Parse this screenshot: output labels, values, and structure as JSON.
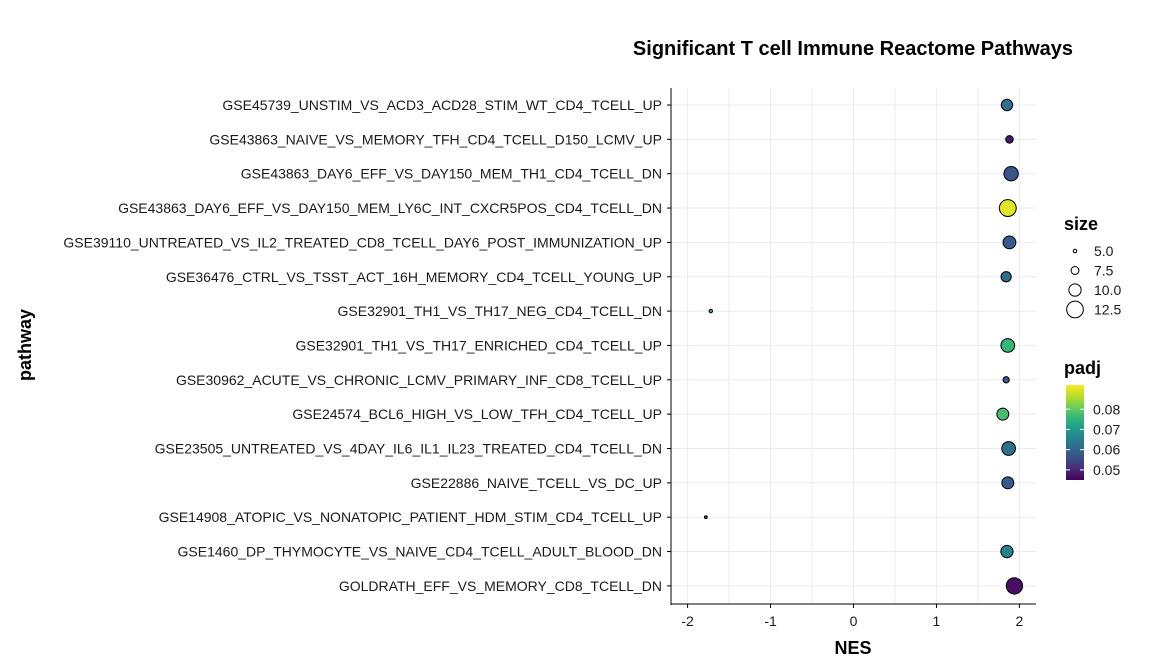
{
  "chart_data": {
    "type": "scatter",
    "title": "Significant T cell Immune Reactome Pathways",
    "xlabel": "NES",
    "ylabel": "pathway",
    "xlim": [
      -2.2,
      2.2
    ],
    "xticks": [
      -2,
      -1,
      0,
      1,
      2
    ],
    "grid": true,
    "legend_position": "right",
    "points": [
      {
        "pathway": "GSE45739_UNSTIM_VS_ACD3_ACD28_STIM_WT_CD4_TCELL_UP",
        "nes": 1.85,
        "size": 9.5,
        "padj": 0.062
      },
      {
        "pathway": "GSE43863_NAIVE_VS_MEMORY_TFH_CD4_TCELL_D150_LCMV_UP",
        "nes": 1.88,
        "size": 7.3,
        "padj": 0.048
      },
      {
        "pathway": "GSE43863_DAY6_EFF_VS_DAY150_MEM_TH1_CD4_TCELL_DN",
        "nes": 1.9,
        "size": 11.2,
        "padj": 0.057
      },
      {
        "pathway": "GSE43863_DAY6_EFF_VS_DAY150_MEM_LY6C_INT_CXCR5POS_CD4_TCELL_DN",
        "nes": 1.86,
        "size": 12.6,
        "padj": 0.09
      },
      {
        "pathway": "GSE39110_UNTREATED_VS_IL2_TREATED_CD8_TCELL_DAY6_POST_IMMUNIZATION_UP",
        "nes": 1.88,
        "size": 10.3,
        "padj": 0.058
      },
      {
        "pathway": "GSE36476_CTRL_VS_TSST_ACT_16H_MEMORY_CD4_TCELL_YOUNG_UP",
        "nes": 1.84,
        "size": 8.8,
        "padj": 0.062
      },
      {
        "pathway": "GSE32901_TH1_VS_TH17_NEG_CD4_TCELL_DN",
        "nes": -1.72,
        "size": 5.0,
        "padj": 0.075
      },
      {
        "pathway": "GSE32901_TH1_VS_TH17_ENRICHED_CD4_TCELL_UP",
        "nes": 1.86,
        "size": 10.8,
        "padj": 0.076
      },
      {
        "pathway": "GSE30962_ACUTE_VS_CHRONIC_LCMV_PRIMARY_INF_CD8_TCELL_UP",
        "nes": 1.84,
        "size": 6.6,
        "padj": 0.058
      },
      {
        "pathway": "GSE24574_BCL6_HIGH_VS_LOW_TFH_CD4_TCELL_UP",
        "nes": 1.8,
        "size": 9.8,
        "padj": 0.078
      },
      {
        "pathway": "GSE23505_UNTREATED_VS_4DAY_IL6_IL1_IL23_TREATED_CD4_TCELL_DN",
        "nes": 1.87,
        "size": 10.8,
        "padj": 0.062
      },
      {
        "pathway": "GSE22886_NAIVE_TCELL_VS_DC_UP",
        "nes": 1.86,
        "size": 9.8,
        "padj": 0.058
      },
      {
        "pathway": "GSE14908_ATOPIC_VS_NONATOPIC_PATIENT_HDM_STIM_CD4_TCELL_UP",
        "nes": -1.78,
        "size": 4.6,
        "padj": 0.057
      },
      {
        "pathway": "GSE1460_DP_THYMOCYTE_VS_NAIVE_CD4_TCELL_ADULT_BLOOD_DN",
        "nes": 1.85,
        "size": 10.0,
        "padj": 0.066
      },
      {
        "pathway": "GOLDRATH_EFF_VS_MEMORY_CD8_TCELL_DN",
        "nes": 1.94,
        "size": 12.3,
        "padj": 0.047
      }
    ],
    "size_legend": {
      "title": "size",
      "values": [
        5.0,
        7.5,
        10.0,
        12.5
      ],
      "labels": [
        "5.0",
        "7.5",
        "10.0",
        "12.5"
      ]
    },
    "color_legend": {
      "title": "padj",
      "colormap": "viridis",
      "range": [
        0.045,
        0.092
      ],
      "ticks": [
        0.08,
        0.07,
        0.06,
        0.05
      ],
      "labels": [
        "0.08",
        "0.07",
        "0.06",
        "0.05"
      ]
    }
  }
}
